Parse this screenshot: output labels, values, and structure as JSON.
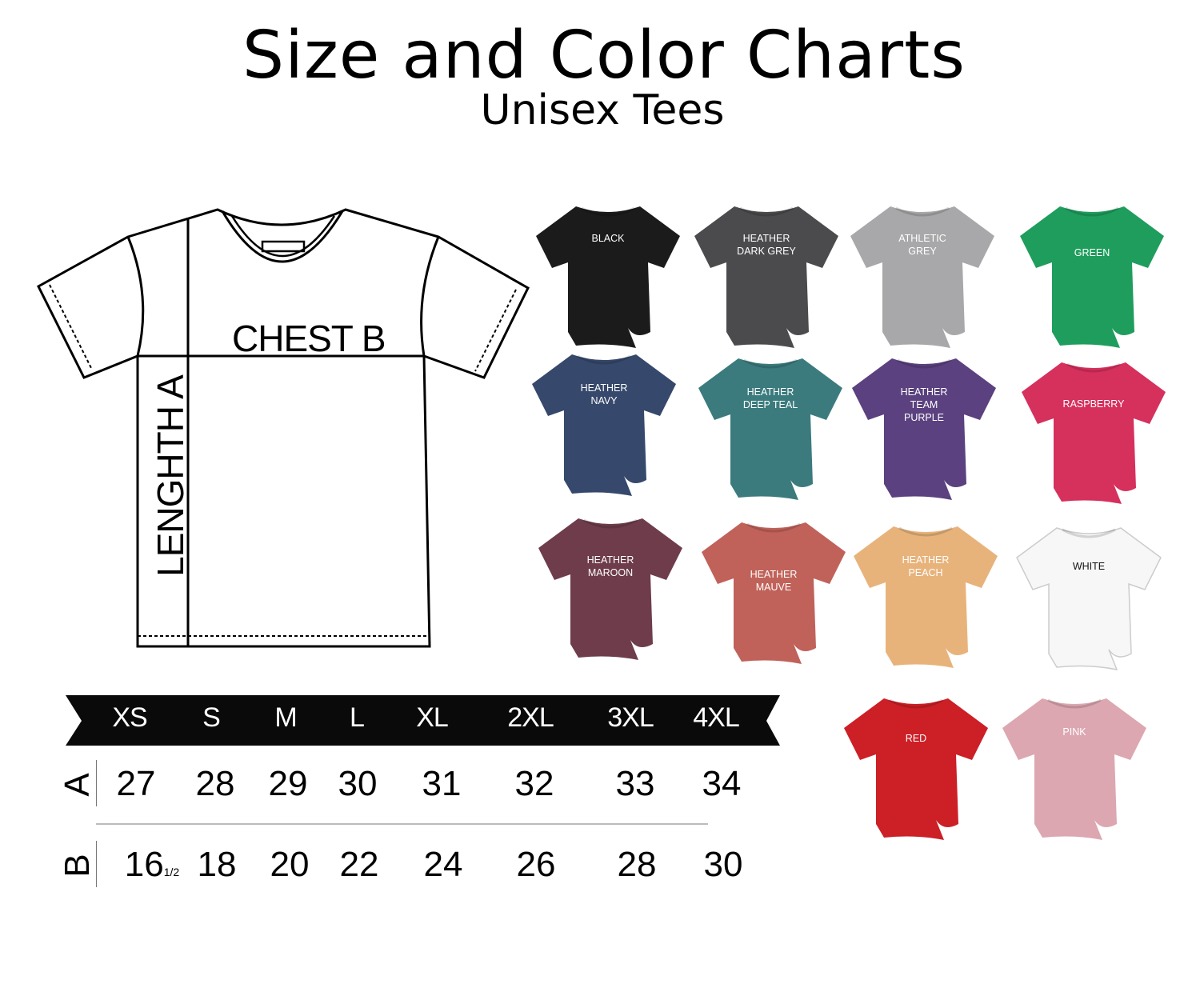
{
  "header": {
    "title": "Size and Color Charts",
    "subtitle": "Unisex Tees"
  },
  "diagram": {
    "chest_label": "CHEST B",
    "length_label": "LENGHTH A"
  },
  "colors": [
    {
      "label": "BLACK",
      "hex": "#1b1b1c",
      "text": "#ffffff"
    },
    {
      "label": "HEATHER\nDARK GREY",
      "hex": "#4b4b4e",
      "text": "#ffffff"
    },
    {
      "label": "ATHLETIC\nGREY",
      "hex": "#a8a8aa",
      "text": "#ffffff"
    },
    {
      "label": "GREEN",
      "hex": "#1f9d5d",
      "text": "#ffffff"
    },
    {
      "label": "HEATHER\nNAVY",
      "hex": "#36486b",
      "text": "#ffffff"
    },
    {
      "label": "HEATHER\nDEEP TEAL",
      "hex": "#3b7b7e",
      "text": "#ffffff"
    },
    {
      "label": "HEATHER\nTEAM\nPURPLE",
      "hex": "#5b417f",
      "text": "#ffffff"
    },
    {
      "label": "RASPBERRY",
      "hex": "#d6305d",
      "text": "#ffffff"
    },
    {
      "label": "HEATHER\nMAROON",
      "hex": "#6e3c4b",
      "text": "#ffffff"
    },
    {
      "label": "HEATHER\nMAUVE",
      "hex": "#c0625a",
      "text": "#ffffff"
    },
    {
      "label": "HEATHER\nPEACH",
      "hex": "#e8b37b",
      "text": "#ffffff"
    },
    {
      "label": "WHITE",
      "hex": "#f7f7f7",
      "text": "#111111"
    },
    {
      "label": "RED",
      "hex": "#cc1f26",
      "text": "#ffffff"
    },
    {
      "label": "PINK",
      "hex": "#dca7b1",
      "text": "#ffffff"
    }
  ],
  "size_table": {
    "sizes": [
      "XS",
      "S",
      "M",
      "L",
      "XL",
      "2XL",
      "3XL",
      "4XL"
    ],
    "rows": [
      {
        "label": "A",
        "values": [
          "27",
          "28",
          "29",
          "30",
          "31",
          "32",
          "33",
          "34"
        ]
      },
      {
        "label": "B",
        "values": [
          "16",
          "18",
          "20",
          "22",
          "24",
          "26",
          "28",
          "30"
        ],
        "first_fraction": "1/2"
      }
    ]
  }
}
